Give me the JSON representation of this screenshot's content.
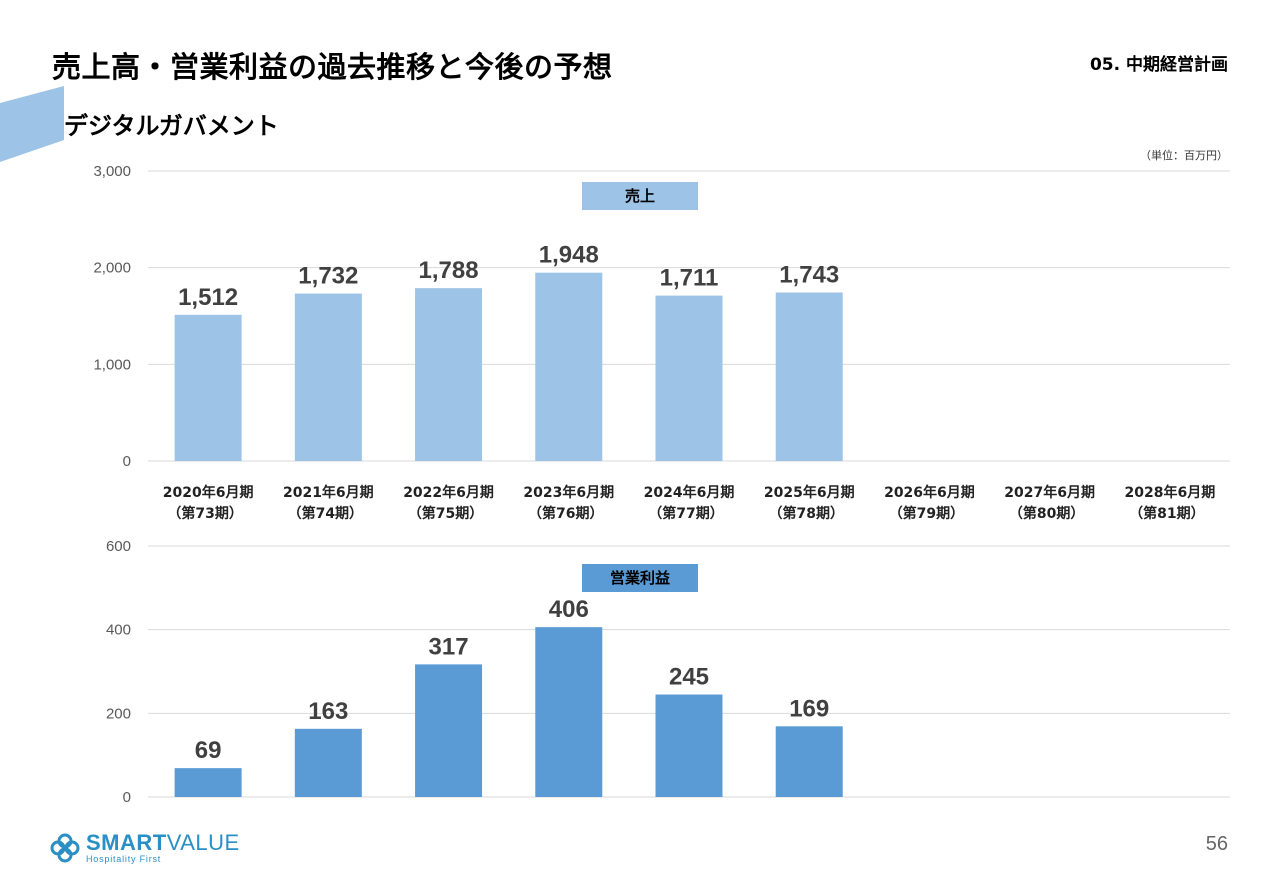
{
  "header": {
    "title": "売上高・営業利益の過去推移と今後の予想",
    "section": "05. 中期経営計画",
    "subtitle": "デジタルガバメント",
    "unit": "（単位：百万円）"
  },
  "colors": {
    "sales_bar": "#9dc3e6",
    "profit_bar": "#5b9bd5",
    "accent": "#9dc3e6"
  },
  "chart_data": [
    {
      "type": "bar",
      "title": "売上",
      "categories": [
        [
          "2020年6月期",
          "（第73期）"
        ],
        [
          "2021年6月期",
          "（第74期）"
        ],
        [
          "2022年6月期",
          "（第75期）"
        ],
        [
          "2023年6月期",
          "（第76期）"
        ],
        [
          "2024年6月期",
          "（第77期）"
        ],
        [
          "2025年6月期",
          "（第78期）"
        ],
        [
          "2026年6月期",
          "（第79期）"
        ],
        [
          "2027年6月期",
          "（第80期）"
        ],
        [
          "2028年6月期",
          "（第81期）"
        ]
      ],
      "values": [
        1512,
        1732,
        1788,
        1948,
        1711,
        1743,
        null,
        null,
        null
      ],
      "value_labels": [
        "1,512",
        "1,732",
        "1,788",
        "1,948",
        "1,711",
        "1,743",
        "",
        "",
        ""
      ],
      "yticks": [
        "0",
        "1,000",
        "2,000",
        "3,000"
      ],
      "ylim": [
        0,
        3000
      ],
      "grid": true
    },
    {
      "type": "bar",
      "title": "営業利益",
      "values": [
        69,
        163,
        317,
        406,
        245,
        169,
        null,
        null,
        null
      ],
      "value_labels": [
        "69",
        "163",
        "317",
        "406",
        "245",
        "169",
        "",
        "",
        ""
      ],
      "yticks": [
        "0",
        "200",
        "400",
        "600"
      ],
      "ylim": [
        0,
        600
      ],
      "grid": true
    }
  ],
  "footer": {
    "logo_main_bold": "SMART",
    "logo_main_regular": "VALUE",
    "logo_sub": "Hospitality First",
    "page_number": "56"
  }
}
